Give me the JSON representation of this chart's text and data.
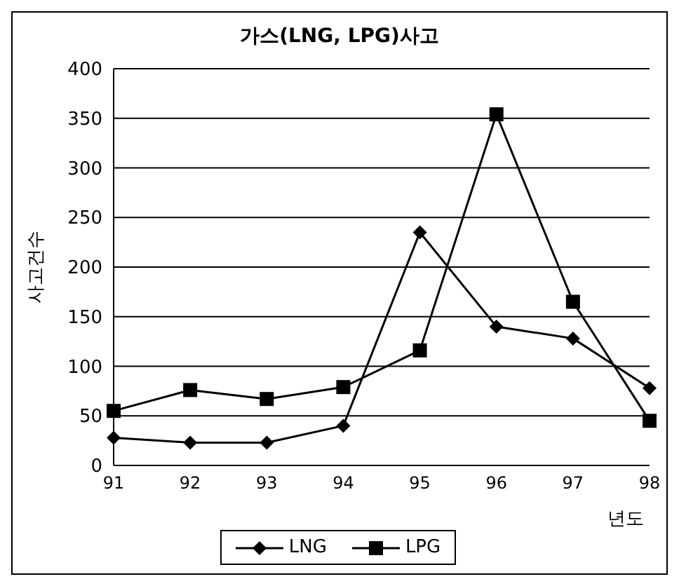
{
  "chart_data": {
    "type": "line",
    "title": "가스(LNG, LPG)사고",
    "xlabel": "년도",
    "ylabel": "사고건수",
    "categories": [
      "91",
      "92",
      "93",
      "94",
      "95",
      "96",
      "97",
      "98"
    ],
    "series": [
      {
        "name": "LNG",
        "color": "#000000",
        "marker": "diamond",
        "values": [
          28,
          23,
          23,
          40,
          235,
          140,
          128,
          78
        ]
      },
      {
        "name": "LPG",
        "color": "#000000",
        "marker": "square",
        "values": [
          55,
          76,
          67,
          79,
          116,
          354,
          165,
          45
        ]
      }
    ],
    "ylim": [
      0,
      400
    ],
    "yticks": [
      0,
      50,
      100,
      150,
      200,
      250,
      300,
      350,
      400
    ],
    "grid": "y",
    "legend": "bottom",
    "line_style": "solid"
  }
}
